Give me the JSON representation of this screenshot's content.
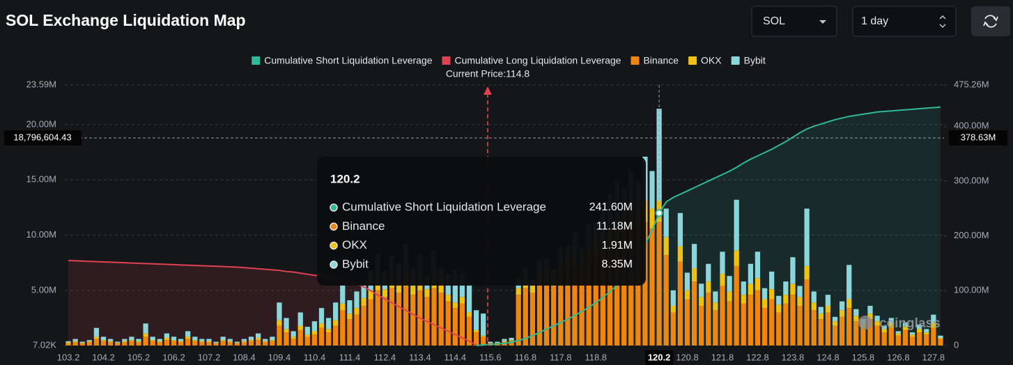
{
  "controls": {
    "coin": "SOL",
    "period": "1 day"
  },
  "chart_data": {
    "type": "bar",
    "title": "SOL Exchange Liquidation Map",
    "current_price_label": "Current Price:114.8",
    "watermark": "coinglass",
    "grid": true,
    "stacked": true,
    "categories": [
      "103.2",
      null,
      null,
      null,
      null,
      "104.2",
      null,
      null,
      null,
      null,
      "105.2",
      null,
      null,
      null,
      null,
      "106.2",
      null,
      null,
      null,
      null,
      "107.2",
      null,
      null,
      null,
      null,
      "108.4",
      null,
      null,
      null,
      null,
      "109.4",
      null,
      null,
      null,
      null,
      "110.4",
      null,
      null,
      null,
      null,
      "111.4",
      null,
      null,
      null,
      null,
      "112.4",
      null,
      null,
      null,
      null,
      "113.4",
      null,
      null,
      null,
      null,
      "114.4",
      null,
      null,
      null,
      null,
      "115.6",
      null,
      null,
      null,
      null,
      "116.8",
      null,
      null,
      null,
      null,
      "117.8",
      null,
      null,
      null,
      null,
      "118.8",
      null,
      null,
      null,
      null,
      null,
      null,
      null,
      null,
      "120.2",
      null,
      null,
      null,
      "120.8",
      null,
      null,
      null,
      null,
      "121.8",
      null,
      null,
      null,
      null,
      "122.8",
      null,
      null,
      null,
      null,
      "123.8",
      null,
      null,
      null,
      null,
      "124.8",
      null,
      null,
      null,
      null,
      "125.8",
      null,
      null,
      null,
      null,
      "126.8",
      null,
      null,
      null,
      null,
      "127.8",
      null
    ],
    "ylim": [
      0.00702,
      23.59
    ],
    "yticks": [
      {
        "value": 0.00702,
        "label": "7.02K"
      },
      {
        "value": 5,
        "label": "5.00M"
      },
      {
        "value": 10,
        "label": "10.00M"
      },
      {
        "value": 15,
        "label": "15.00M"
      },
      {
        "value": 20,
        "label": "20.00M"
      },
      {
        "value": 23.59,
        "label": "23.59M"
      }
    ],
    "y2lim": [
      0,
      475.26
    ],
    "y2ticks": [
      0,
      {
        "value": 100,
        "label": "100.00M"
      },
      {
        "value": 200,
        "label": "200.00M"
      },
      {
        "value": 300,
        "label": "300.00M"
      },
      {
        "value": 400,
        "label": "400.00M"
      },
      {
        "value": 475.26,
        "label": "475.26M"
      }
    ],
    "series": [
      {
        "name": "Cumulative Short Liquidation Leverage",
        "type": "line",
        "axis": "y2",
        "color": "#2dbb98",
        "values": [
          null,
          null,
          null,
          null,
          null,
          null,
          null,
          null,
          null,
          null,
          null,
          null,
          null,
          null,
          null,
          null,
          null,
          null,
          null,
          null,
          null,
          null,
          null,
          null,
          null,
          null,
          null,
          null,
          null,
          null,
          null,
          null,
          null,
          null,
          null,
          null,
          null,
          null,
          null,
          null,
          null,
          null,
          null,
          null,
          null,
          null,
          null,
          null,
          null,
          null,
          null,
          null,
          null,
          null,
          null,
          null,
          null,
          null,
          0,
          1,
          2,
          3,
          4,
          6,
          9,
          13,
          18,
          24,
          30,
          36,
          42,
          48,
          55,
          62,
          70,
          78,
          88,
          98,
          110,
          122,
          140,
          160,
          185,
          210,
          241.6,
          262,
          270,
          276,
          282,
          288,
          294,
          300,
          306,
          312,
          318,
          325,
          333,
          340,
          346,
          352,
          358,
          365,
          372,
          380,
          388,
          395,
          400,
          404,
          408,
          412,
          415,
          418,
          420,
          422,
          424,
          426,
          427,
          428,
          429,
          430,
          431,
          432,
          433,
          434,
          435
        ]
      },
      {
        "name": "Cumulative Long Liquidation Leverage",
        "type": "line",
        "axis": "y2",
        "color": "#e0434f",
        "values": [
          155,
          154.5,
          154,
          153.5,
          153,
          152.5,
          152,
          151.5,
          151,
          150.5,
          150,
          149.5,
          149,
          148.5,
          148,
          147.5,
          147,
          146.5,
          146,
          145.5,
          145,
          144.5,
          144,
          143.5,
          143,
          142,
          141,
          140,
          139,
          138,
          137,
          135,
          134,
          132,
          130,
          128,
          126,
          124,
          122,
          119,
          116,
          112,
          107,
          100,
          92,
          85,
          78,
          71,
          64,
          57,
          50,
          44,
          38,
          32,
          26,
          20,
          14,
          8,
          1,
          null,
          null,
          null,
          null,
          null,
          null,
          null,
          null,
          null,
          null,
          null,
          null,
          null,
          null,
          null,
          null,
          null,
          null,
          null,
          null,
          null,
          null,
          null,
          null,
          null,
          null,
          null,
          null,
          null,
          null,
          null,
          null,
          null,
          null,
          null,
          null,
          null,
          null,
          null,
          null,
          null,
          null,
          null,
          null,
          null,
          null,
          null,
          null,
          null,
          null,
          null,
          null,
          null,
          null,
          null,
          null,
          null,
          null,
          null,
          null,
          null,
          null,
          null,
          null,
          null,
          null
        ]
      },
      {
        "name": "Binance",
        "type": "bar",
        "color": "#ee8610",
        "values": [
          0.2,
          0.3,
          0.2,
          0.3,
          0.6,
          0.4,
          0.3,
          0.2,
          0.3,
          0.4,
          0.3,
          0.8,
          0.4,
          0.3,
          0.5,
          0.4,
          0.3,
          0.6,
          0.4,
          0.3,
          0.3,
          0.2,
          0.4,
          0.3,
          0.2,
          0.3,
          0.4,
          0.5,
          0.3,
          0.4,
          1.8,
          1.2,
          0.6,
          1.4,
          0.8,
          1.0,
          1.6,
          1.2,
          1.8,
          3.2,
          2.4,
          2.8,
          3.6,
          4.2,
          5.0,
          4.4,
          5.2,
          4.8,
          5.4,
          4.6,
          5.0,
          4.4,
          5.2,
          4.8,
          4.0,
          3.4,
          3.8,
          2.6,
          1.2,
          0.8,
          0.2,
          0.2,
          0.3,
          0.4,
          4.6,
          5.2,
          4.8,
          5.6,
          6.0,
          5.4,
          6.4,
          6.8,
          7.2,
          6.6,
          7.6,
          8.0,
          8.4,
          9.0,
          9.6,
          10.2,
          10.8,
          10.4,
          11.2,
          10.6,
          11.18,
          8.2,
          3.0,
          7.6,
          4.2,
          5.8,
          3.6,
          4.8,
          3.2,
          5.4,
          4.0,
          7.2,
          3.8,
          4.6,
          5.0,
          3.4,
          4.2,
          3.0,
          3.8,
          4.6,
          3.6,
          6.0,
          3.2,
          2.4,
          3.0,
          1.8,
          2.6,
          3.4,
          2.2,
          1.6,
          2.4,
          1.8,
          1.2,
          1.6,
          0.9,
          1.4,
          0.8,
          1.2,
          1.0,
          1.6,
          0.6
        ]
      },
      {
        "name": "OKX",
        "type": "bar",
        "color": "#efc20f",
        "values": [
          0.1,
          0.1,
          0.05,
          0.1,
          0.2,
          0.1,
          0.1,
          0.05,
          0.1,
          0.1,
          0.1,
          0.3,
          0.1,
          0.1,
          0.2,
          0.1,
          0.1,
          0.2,
          0.1,
          0.1,
          0.1,
          0.05,
          0.1,
          0.1,
          0.05,
          0.1,
          0.1,
          0.2,
          0.1,
          0.1,
          0.5,
          0.3,
          0.2,
          0.4,
          0.2,
          0.3,
          0.4,
          0.3,
          0.5,
          0.6,
          0.5,
          0.6,
          0.7,
          0.8,
          0.9,
          0.7,
          0.8,
          0.9,
          1.0,
          0.8,
          0.9,
          0.7,
          0.8,
          0.9,
          0.6,
          0.5,
          0.6,
          0.4,
          0.2,
          0.1,
          0.05,
          0.05,
          0.1,
          0.1,
          0.6,
          0.7,
          0.6,
          0.8,
          0.9,
          0.7,
          0.9,
          1.0,
          1.1,
          0.9,
          1.2,
          1.3,
          1.4,
          1.5,
          1.6,
          1.7,
          1.8,
          1.7,
          1.9,
          1.8,
          1.91,
          1.6,
          0.6,
          1.4,
          0.8,
          1.2,
          0.8,
          1.0,
          0.7,
          1.1,
          0.9,
          1.4,
          0.8,
          1.0,
          1.1,
          0.8,
          0.9,
          0.7,
          0.8,
          1.0,
          0.8,
          1.2,
          0.7,
          0.5,
          0.6,
          0.4,
          0.6,
          0.8,
          0.5,
          0.4,
          0.5,
          0.4,
          0.3,
          0.4,
          0.2,
          0.3,
          0.2,
          0.3,
          0.2,
          0.4,
          0.1
        ]
      },
      {
        "name": "Bybit",
        "type": "bar",
        "color": "#8ad6da",
        "values": [
          0.1,
          0.2,
          0.1,
          0.1,
          0.8,
          0.3,
          0.2,
          0.1,
          0.2,
          0.3,
          0.2,
          0.9,
          0.3,
          0.2,
          0.4,
          0.3,
          0.2,
          0.5,
          0.3,
          0.2,
          0.2,
          0.1,
          0.3,
          0.2,
          0.1,
          0.2,
          0.3,
          0.4,
          0.2,
          0.3,
          1.6,
          1.0,
          0.5,
          1.2,
          0.7,
          0.9,
          1.4,
          1.0,
          1.6,
          1.7,
          1.2,
          1.5,
          1.3,
          1.8,
          2.4,
          1.6,
          2.2,
          1.8,
          2.8,
          1.6,
          2.4,
          1.2,
          2.6,
          1.4,
          1.8,
          3.0,
          2.2,
          2.6,
          1.8,
          2.0,
          0.1,
          0.1,
          0.2,
          0.2,
          0.8,
          1.2,
          0.6,
          1.4,
          1.0,
          0.8,
          1.6,
          1.2,
          2.0,
          1.4,
          2.2,
          1.8,
          2.6,
          3.2,
          3.8,
          2.4,
          3.2,
          2.8,
          4.0,
          3.4,
          8.35,
          2.6,
          1.4,
          3.0,
          1.6,
          2.2,
          1.2,
          1.6,
          1.0,
          2.0,
          1.4,
          4.6,
          1.2,
          1.8,
          2.4,
          1.0,
          1.6,
          0.8,
          1.2,
          2.4,
          1.0,
          5.2,
          1.0,
          0.6,
          1.0,
          0.4,
          0.8,
          3.1,
          0.6,
          0.4,
          0.7,
          0.5,
          0.3,
          0.5,
          0.2,
          0.4,
          0.2,
          0.4,
          0.3,
          0.8,
          0.2
        ]
      }
    ],
    "crosshair": {
      "category": "120.2",
      "y": {
        "value": 18.79660443,
        "label": "18,796,604.43"
      },
      "y2": {
        "value": 378.63,
        "label": "378.63M"
      }
    },
    "tooltip": {
      "title": "120.2",
      "rows": [
        {
          "name": "Cumulative Short Liquidation Leverage",
          "value": "241.60M",
          "color": "#2dbb98"
        },
        {
          "name": "Binance",
          "value": "11.18M",
          "color": "#ee8610"
        },
        {
          "name": "OKX",
          "value": "1.91M",
          "color": "#efc20f"
        },
        {
          "name": "Bybit",
          "value": "8.35M",
          "color": "#8ad6da"
        }
      ]
    }
  }
}
